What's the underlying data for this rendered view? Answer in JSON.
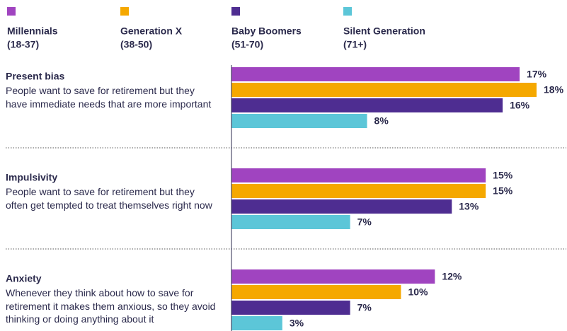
{
  "chart_data": {
    "type": "bar",
    "orientation": "horizontal",
    "categories": [
      "Present bias",
      "Impulsivity",
      "Anxiety"
    ],
    "descriptions": [
      "People want to save for retirement but they have immediate needs that are more important",
      "People want to save for retirement but they often get tempted to treat themselves right now",
      "Whenever they think about how to save for retirement it makes them anxious, so they avoid thinking or doing anything about it"
    ],
    "series": [
      {
        "name": "Millennials",
        "age_range": "(18-37)",
        "color": "#a044c0",
        "values": [
          17,
          15,
          12
        ],
        "value_labels": [
          "17%",
          "15%",
          "12%"
        ]
      },
      {
        "name": "Generation X",
        "age_range": "(38-50)",
        "color": "#f5a800",
        "values": [
          18,
          15,
          10
        ],
        "value_labels": [
          "18%",
          "15%",
          "10%"
        ]
      },
      {
        "name": "Baby Boomers",
        "age_range": "(51-70)",
        "color": "#4e2d91",
        "values": [
          16,
          13,
          7
        ],
        "value_labels": [
          "16%",
          "13%",
          "7%"
        ]
      },
      {
        "name": "Silent Generation",
        "age_range": "(71+)",
        "color": "#5cc6d8",
        "values": [
          8,
          7,
          3
        ],
        "value_labels": [
          "8%",
          "7%",
          "3%"
        ]
      }
    ]
  }
}
